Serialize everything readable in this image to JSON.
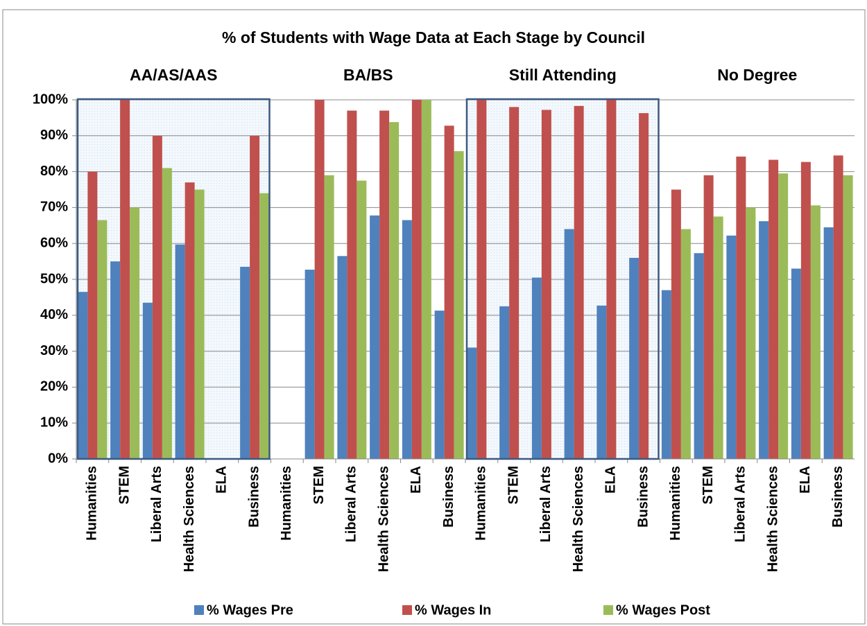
{
  "chart_data": {
    "type": "bar",
    "title": "% of Students with Wage Data at Each Stage by Council",
    "groups": [
      "AA/AS/AAS",
      "BA/BS",
      "Still Attending",
      "No Degree"
    ],
    "categories": [
      "Humanities",
      "STEM",
      "Liberal Arts",
      "Health Sciences",
      "ELA",
      "Business",
      "Humanities",
      "STEM",
      "Liberal Arts",
      "Health Sciences",
      "ELA",
      "Business",
      "Humanities",
      "STEM",
      "Liberal Arts",
      "Health Sciences",
      "ELA",
      "Business",
      "Humanities",
      "STEM",
      "Liberal Arts",
      "Health Sciences",
      "ELA",
      "Business"
    ],
    "series": [
      {
        "name": "% Wages Pre",
        "color": "#4f81bd",
        "values": [
          46.5,
          55,
          43.5,
          59.7,
          null,
          53.5,
          null,
          52.7,
          56.5,
          67.8,
          66.5,
          41.3,
          31,
          42.5,
          50.5,
          64,
          42.7,
          56,
          47,
          57.3,
          62.2,
          66.2,
          53,
          64.5
        ]
      },
      {
        "name": "% Wages In",
        "color": "#c0504d",
        "values": [
          80,
          100,
          90,
          77,
          null,
          90,
          null,
          100,
          97,
          97,
          100,
          92.8,
          100,
          98,
          97.2,
          98.3,
          100,
          96.3,
          75,
          79,
          84.2,
          83.3,
          82.7,
          84.5
        ]
      },
      {
        "name": "% Wages Post",
        "color": "#9bbb59",
        "values": [
          66.5,
          70,
          81,
          75,
          null,
          74,
          null,
          79,
          77.5,
          93.8,
          100,
          85.7,
          null,
          null,
          null,
          null,
          null,
          null,
          64,
          67.5,
          70,
          79.5,
          70.6,
          79
        ]
      }
    ],
    "ylim": [
      0,
      100
    ],
    "yticks": [
      {
        "value": 0,
        "label": "0%"
      },
      {
        "value": 10,
        "label": "10%"
      },
      {
        "value": 20,
        "label": "20%"
      },
      {
        "value": 30,
        "label": "30%"
      },
      {
        "value": 40,
        "label": "40%"
      },
      {
        "value": 50,
        "label": "50%"
      },
      {
        "value": 60,
        "label": "60%"
      },
      {
        "value": 70,
        "label": "70%"
      },
      {
        "value": 80,
        "label": "80%"
      },
      {
        "value": 90,
        "label": "90%"
      },
      {
        "value": 100,
        "label": "100%"
      }
    ],
    "grid": true,
    "legend": "bottom"
  }
}
